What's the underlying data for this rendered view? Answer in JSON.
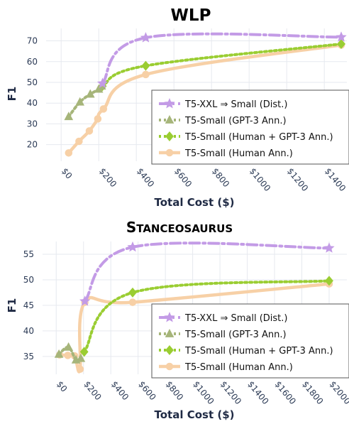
{
  "chart_data": [
    {
      "type": "line",
      "title": "WLP",
      "xlabel": "Total Cost ($)",
      "ylabel": "F1",
      "xticks": [
        "$0",
        "$200",
        "$400",
        "$600",
        "$800",
        "$1000",
        "$1200",
        "$1400"
      ],
      "xtick_values": [
        0,
        200,
        400,
        600,
        800,
        1000,
        1200,
        1400
      ],
      "yticks": [
        "20",
        "30",
        "40",
        "50",
        "60",
        "70"
      ],
      "ytick_values": [
        20,
        30,
        40,
        50,
        60,
        70
      ],
      "xlim": [
        -80,
        1520
      ],
      "ylim": [
        12,
        76
      ],
      "grid": true,
      "legend_position": "lower-right",
      "series": [
        {
          "name": "T5-XXL ⇒ Small (Dist.)",
          "color": "#c39be6",
          "marker": "star",
          "dash": "dashdot",
          "x": [
            220,
            450,
            1490
          ],
          "y": [
            49.5,
            71.5,
            71.8
          ]
        },
        {
          "name": "T5-Small (GPT-3 Ann.)",
          "color": "#a6b57a",
          "marker": "triangle",
          "dash": "dotted",
          "x": [
            40,
            100,
            155,
            200,
            215
          ],
          "y": [
            33.5,
            40.5,
            44.3,
            46.7,
            48.2
          ]
        },
        {
          "name": "T5-Small (Human + GPT-3 Ann.)",
          "color": "#9acd32",
          "marker": "diamond",
          "dash": "dotted",
          "x": [
            220,
            450,
            1490
          ],
          "y": [
            48.2,
            58.0,
            68.5
          ]
        },
        {
          "name": "T5-Small (Human Ann.)",
          "color": "#f7d0a6",
          "marker": "circle",
          "dash": "solid",
          "x": [
            40,
            95,
            150,
            195,
            225,
            450,
            1490
          ],
          "y": [
            16.0,
            21.6,
            26.6,
            32.4,
            37.2,
            53.8,
            68.0
          ]
        }
      ]
    },
    {
      "type": "line",
      "title": "Stanceosaurus",
      "xlabel": "Total Cost ($)",
      "ylabel": "F1",
      "xticks": [
        "$0",
        "$200",
        "$400",
        "$600",
        "$800",
        "$1000",
        "$1200",
        "$1400",
        "$1600",
        "$1800",
        "$2000"
      ],
      "xtick_values": [
        0,
        200,
        400,
        600,
        800,
        1000,
        1200,
        1400,
        1600,
        1800,
        2000
      ],
      "yticks": [
        "35",
        "40",
        "45",
        "50",
        "55"
      ],
      "ytick_values": [
        35,
        40,
        45,
        50,
        55
      ],
      "xlim": [
        -100,
        2130
      ],
      "ylim": [
        31.5,
        57.5
      ],
      "grid": true,
      "legend_position": "lower-right",
      "series": [
        {
          "name": "T5-XXL ⇒ Small (Dist.)",
          "color": "#c39be6",
          "marker": "star",
          "dash": "dashdot",
          "x": [
            210,
            560,
            2000
          ],
          "y": [
            45.8,
            56.4,
            56.2
          ]
        },
        {
          "name": "T5-Small (GPT-3 Ann.)",
          "color": "#a6b57a",
          "marker": "triangle",
          "dash": "dotted",
          "x": [
            20,
            90,
            145,
            180
          ],
          "y": [
            35.4,
            36.8,
            34.3,
            34.6
          ]
        },
        {
          "name": "T5-Small (Human + GPT-3 Ann.)",
          "color": "#9acd32",
          "marker": "diamond",
          "dash": "dotted",
          "x": [
            205,
            560,
            2000
          ],
          "y": [
            35.9,
            47.5,
            49.8
          ]
        },
        {
          "name": "T5-Small (Human Ann.)",
          "color": "#f7d0a6",
          "marker": "circle",
          "dash": "solid",
          "x": [
            25,
            85,
            135,
            175,
            210,
            560,
            2000
          ],
          "y": [
            35.3,
            35.2,
            35.1,
            32.5,
            45.6,
            45.6,
            49.2
          ]
        }
      ]
    }
  ]
}
